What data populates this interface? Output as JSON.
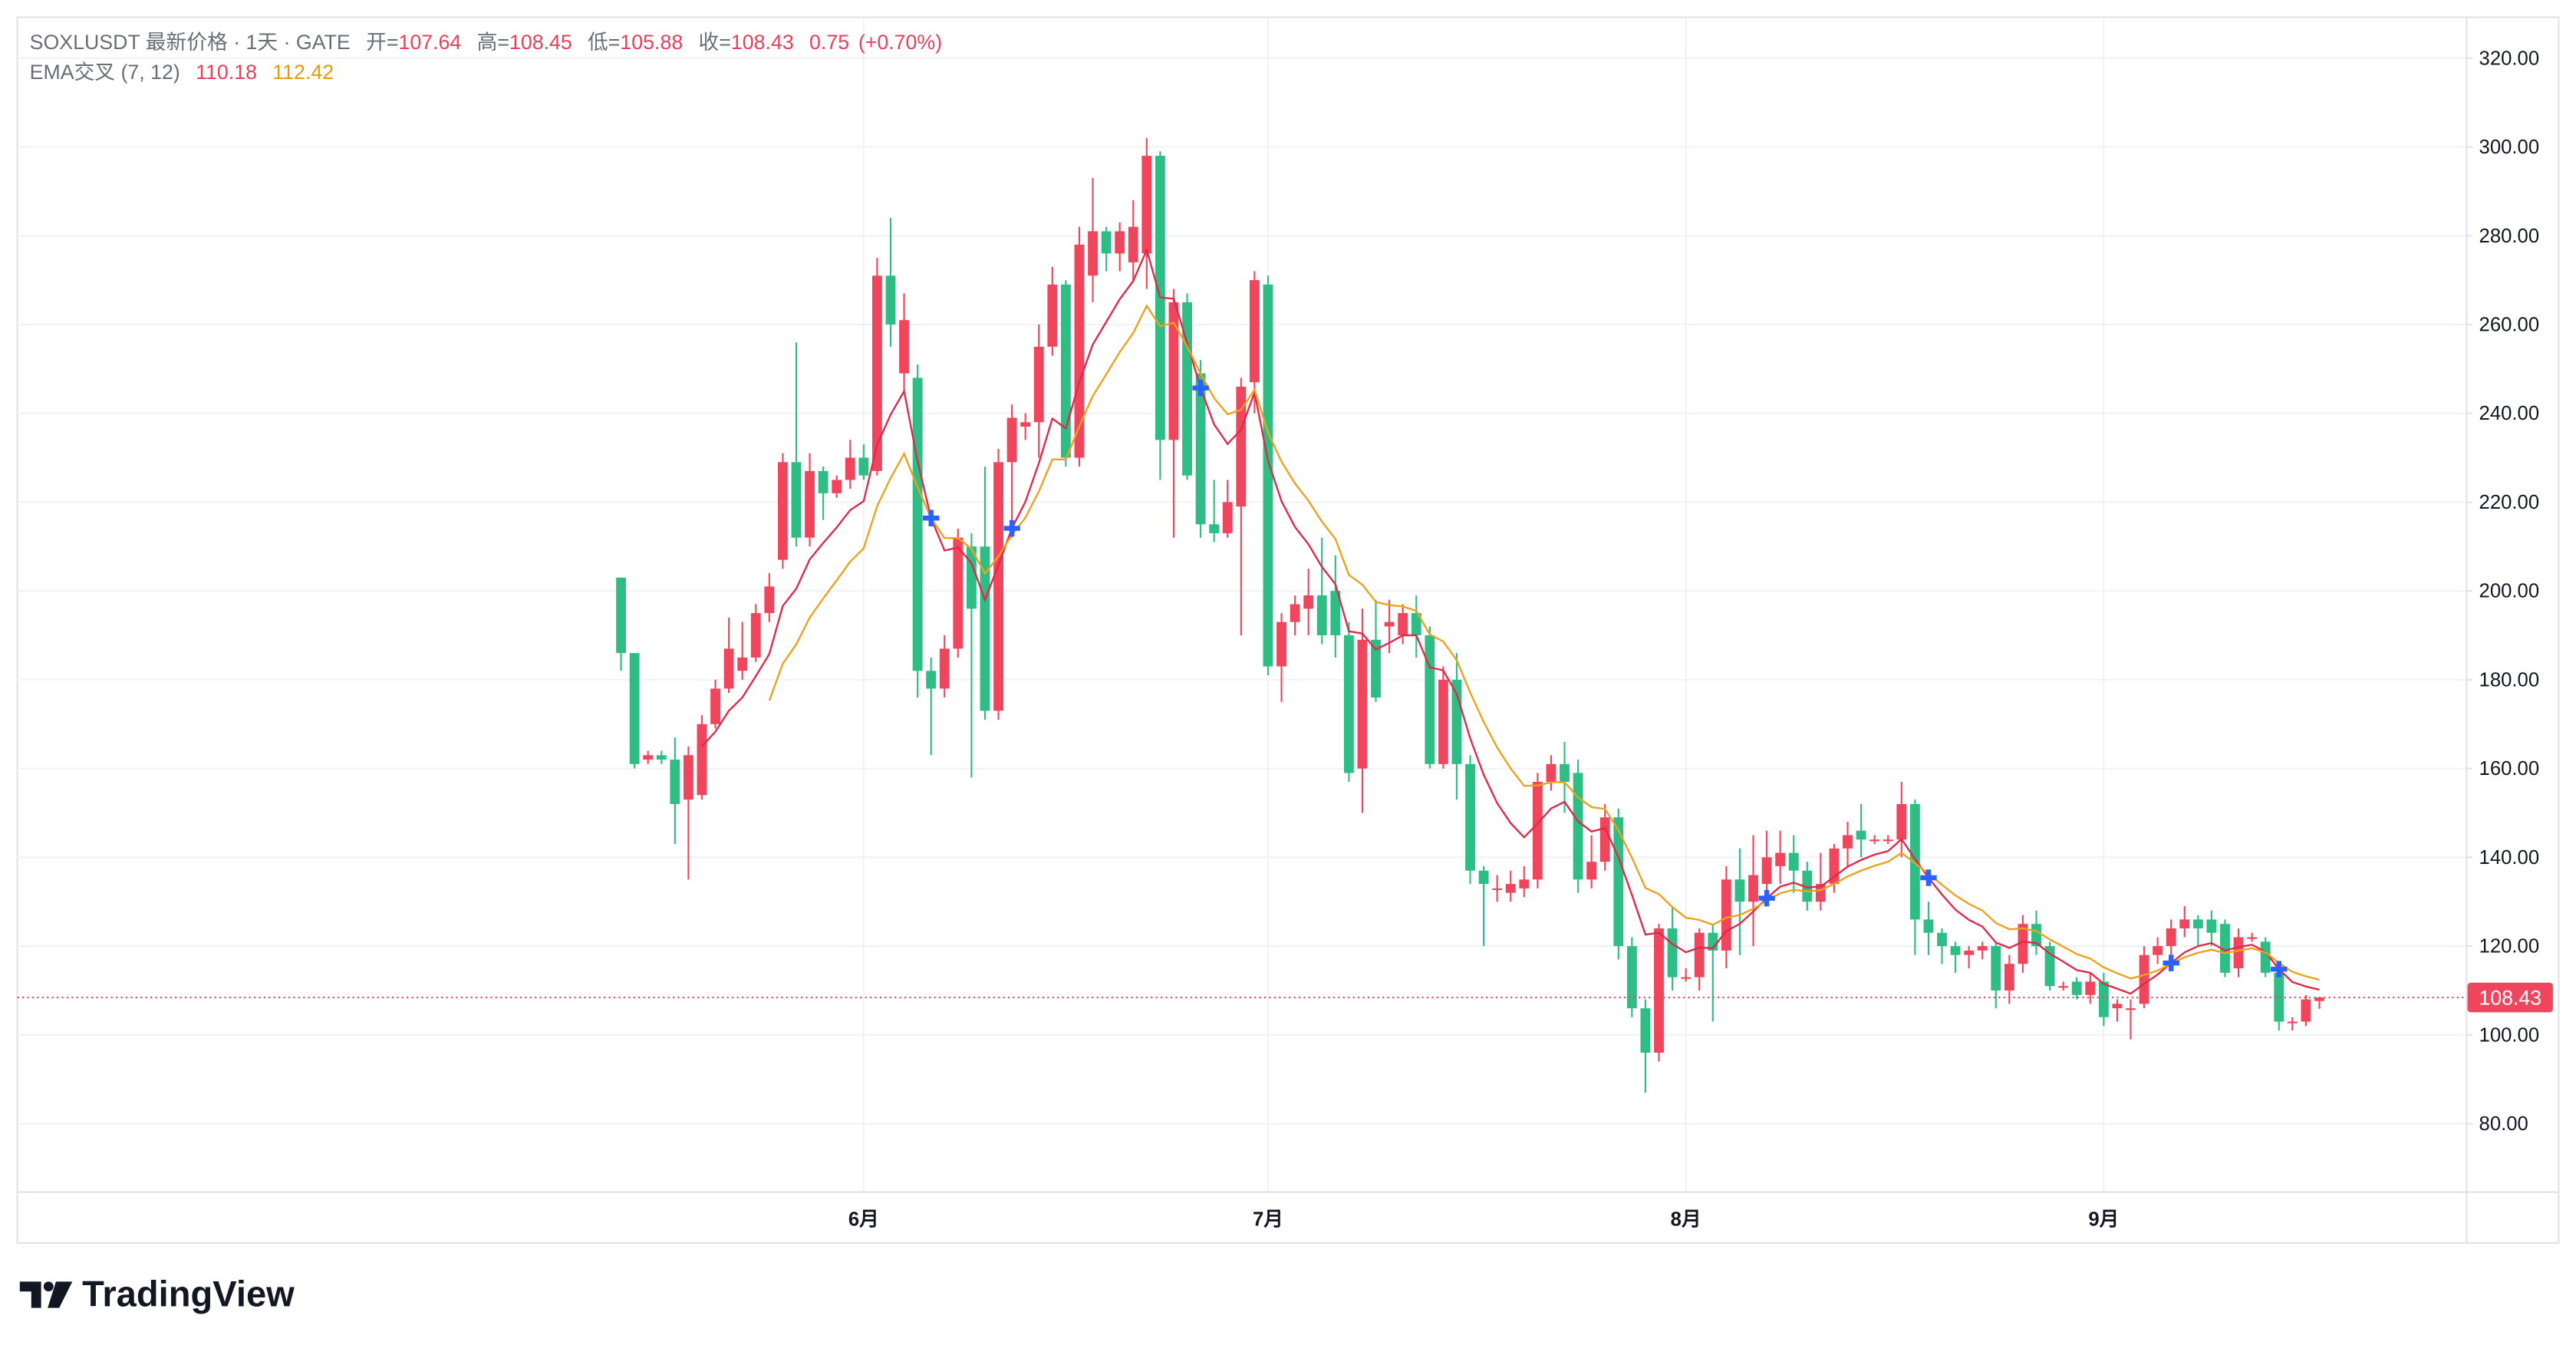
{
  "chart_data": {
    "type": "candlestick",
    "title": "SOXLUSDT 最新价格 · 1天 · GATE",
    "ohlc_labels": {
      "open": "开=",
      "high": "高=",
      "low": "低=",
      "close": "收="
    },
    "change": 0.75,
    "change_pct": {
      "value": 0.7,
      "label": "(+0.70%)"
    },
    "categories": [
      null,
      null,
      null,
      null,
      null,
      null,
      null,
      null,
      null,
      null,
      null,
      null,
      null,
      null,
      null,
      null,
      null,
      null,
      "6月",
      null,
      null,
      null,
      null,
      null,
      null,
      null,
      null,
      null,
      null,
      null,
      null,
      null,
      null,
      null,
      null,
      null,
      null,
      null,
      null,
      null,
      null,
      null,
      null,
      null,
      null,
      null,
      null,
      null,
      "7月",
      null,
      null,
      null,
      null,
      null,
      null,
      null,
      null,
      null,
      null,
      null,
      null,
      null,
      null,
      null,
      null,
      null,
      null,
      null,
      null,
      null,
      null,
      null,
      null,
      null,
      null,
      null,
      null,
      null,
      null,
      "8月",
      null,
      null,
      null,
      null,
      null,
      null,
      null,
      null,
      null,
      null,
      null,
      null,
      null,
      null,
      null,
      null,
      null,
      null,
      null,
      null,
      null,
      null,
      null,
      null,
      null,
      null,
      null,
      null,
      null,
      null,
      "9月",
      null,
      null,
      null,
      null,
      null,
      null,
      null,
      null,
      null,
      null,
      null,
      null,
      null,
      null,
      null,
      null
    ],
    "open": [
      203,
      186,
      162,
      163,
      162,
      153,
      154,
      170,
      178,
      182,
      185,
      195,
      207,
      229,
      212,
      227,
      222,
      225,
      230,
      227,
      271,
      249,
      248,
      182,
      178,
      187,
      210,
      210,
      173,
      229,
      237,
      238,
      255,
      269,
      230,
      271,
      281,
      276,
      274,
      276,
      298,
      234,
      265,
      249,
      215,
      213,
      219,
      247,
      269,
      183,
      193,
      196,
      199,
      200,
      190,
      160,
      189,
      192,
      190,
      195,
      190,
      161,
      180,
      161,
      137,
      133,
      132,
      133,
      135,
      157,
      161,
      159,
      135,
      139,
      149,
      120,
      106,
      96,
      124,
      113,
      113,
      123,
      119,
      135,
      130,
      134,
      138,
      141,
      137,
      130,
      134,
      142,
      146,
      144,
      144,
      144,
      152,
      126,
      123,
      120,
      118,
      119,
      120,
      110,
      116,
      125,
      120,
      111,
      112,
      109,
      112,
      106,
      106,
      107,
      118,
      120,
      124,
      126,
      126,
      125,
      115,
      122,
      121,
      114,
      103,
      103,
      107.64
    ],
    "high": [
      203,
      186,
      164,
      164,
      167,
      165,
      172,
      180,
      194,
      193,
      197,
      204,
      231,
      256,
      231,
      228,
      226,
      234,
      233,
      275,
      284,
      267,
      251,
      185,
      190,
      214,
      213,
      228,
      232,
      242,
      240,
      260,
      273,
      270,
      282,
      293,
      282,
      283,
      288,
      302,
      299,
      268,
      267,
      252,
      225,
      225,
      248,
      272,
      271,
      195,
      199,
      205,
      212,
      208,
      193,
      196,
      198,
      198,
      197,
      199,
      192,
      183,
      186,
      163,
      138,
      136,
      137,
      138,
      159,
      163,
      166,
      162,
      145,
      152,
      151,
      122,
      108,
      125,
      129,
      115,
      124,
      125,
      138,
      142,
      145,
      146,
      146,
      145,
      139,
      141,
      143,
      148,
      152,
      145,
      145,
      157,
      153,
      130,
      124,
      121,
      120,
      121,
      121,
      118,
      127,
      128,
      121,
      112,
      113,
      114,
      114,
      108,
      108,
      120,
      122,
      126,
      129,
      127,
      128,
      126,
      124,
      123,
      122,
      116,
      104,
      109,
      108.45
    ],
    "low": [
      182,
      160,
      161,
      161,
      143,
      135,
      153,
      169,
      177,
      180,
      184,
      193,
      205,
      210,
      210,
      216,
      221,
      223,
      225,
      226,
      255,
      245,
      176,
      163,
      176,
      185,
      158,
      171,
      171,
      212,
      234,
      230,
      253,
      228,
      228,
      265,
      272,
      272,
      270,
      268,
      225,
      212,
      225,
      212,
      211,
      212,
      190,
      240,
      181,
      175,
      190,
      190,
      188,
      185,
      157,
      150,
      175,
      186,
      188,
      185,
      160,
      160,
      153,
      134,
      120,
      130,
      130,
      131,
      133,
      155,
      150,
      132,
      133,
      137,
      117,
      104,
      87,
      94,
      110,
      112,
      110,
      103,
      115,
      118,
      120,
      130,
      134,
      132,
      128,
      128,
      132,
      138,
      140,
      143,
      143,
      140,
      118,
      118,
      116,
      114,
      115,
      117,
      106,
      107,
      114,
      118,
      110,
      110,
      108,
      107,
      102,
      103,
      99,
      106,
      116,
      118,
      122,
      120,
      120,
      113,
      113,
      121,
      113,
      101,
      101,
      102,
      105.88
    ],
    "close": [
      186,
      161,
      163,
      162,
      152,
      163,
      170,
      178,
      187,
      185,
      195,
      201,
      229,
      212,
      227,
      222,
      225,
      230,
      226,
      271,
      260,
      261,
      182,
      178,
      187,
      212,
      196,
      173,
      229,
      239,
      238,
      255,
      269,
      230,
      278,
      281,
      276,
      281,
      282,
      298,
      234,
      265,
      226,
      215,
      213,
      220,
      246,
      270,
      183,
      193,
      197,
      199,
      190,
      190,
      159,
      189,
      176,
      193,
      195,
      190,
      161,
      180,
      161,
      137,
      134,
      133,
      134,
      135,
      157,
      161,
      157,
      135,
      139,
      149,
      120,
      106,
      96,
      124,
      113,
      113,
      123,
      119,
      135,
      130,
      136,
      140,
      141,
      137,
      130,
      134,
      142,
      145,
      144,
      144,
      144,
      152,
      126,
      123,
      120,
      118,
      119,
      120,
      110,
      116,
      125,
      120,
      111,
      111,
      109,
      112,
      104,
      107,
      106,
      118,
      120,
      124,
      126,
      124,
      123,
      114,
      122,
      122,
      114,
      103,
      103,
      108,
      108.43
    ],
    "up_color": "#f0465d",
    "down_color": "#2ebd85",
    "indicator": {
      "name": "EMA交叉 (7, 12)",
      "lines": [
        {
          "color": "#e0294a",
          "values": [
            null,
            null,
            null,
            null,
            null,
            null,
            165,
            168.3,
            173,
            176,
            180.8,
            185.8,
            196.6,
            200.5,
            207.1,
            210.8,
            214.3,
            218.2,
            220.2,
            232.9,
            239.7,
            245,
            229.2,
            216.4,
            209.1,
            209.8,
            206.3,
            198,
            205.8,
            214.1,
            220.1,
            228.8,
            238.8,
            236.6,
            247,
            255.5,
            260.6,
            265.7,
            269.8,
            276.8,
            266.1,
            265.8,
            255.9,
            245.7,
            237.5,
            233.1,
            236.3,
            244.7,
            229.3,
            220.2,
            214.4,
            210.5,
            205.4,
            201.5,
            190.9,
            190.4,
            186.8,
            188.3,
            190,
            190,
            182.8,
            182.1,
            176.8,
            166.8,
            158.6,
            152.2,
            147.7,
            144.5,
            147.6,
            151,
            152.5,
            148.1,
            145.8,
            146.6,
            140,
            131.5,
            122.6,
            123,
            120.5,
            118.6,
            119.7,
            119.5,
            123.4,
            125,
            127.8,
            130.8,
            133.4,
            134.3,
            133.2,
            133.4,
            135.6,
            137.9,
            139.4,
            140.6,
            141.4,
            144.1,
            139.6,
            135.4,
            131.6,
            128.2,
            125.9,
            124.4,
            120.8,
            119.6,
            121,
            120.7,
            118.3,
            116.5,
            114.6,
            114,
            111.5,
            110.4,
            109.3,
            111.5,
            113.6,
            116.2,
            118.6,
            120,
            120.7,
            119,
            119.8,
            120.3,
            118.7,
            114.8,
            111.9,
            110.9,
            110.18
          ]
        },
        {
          "color": "#eea11a",
          "values": [
            null,
            null,
            null,
            null,
            null,
            null,
            null,
            null,
            null,
            null,
            null,
            175.3,
            183.6,
            188,
            194,
            198.3,
            202.4,
            206.6,
            209.6,
            219.1,
            225.4,
            230.9,
            223.4,
            216.4,
            211.9,
            211.9,
            209.5,
            203.9,
            207.8,
            212.6,
            216.5,
            222.4,
            229.6,
            229.6,
            237.1,
            243.9,
            248.8,
            253.8,
            258.1,
            264.2,
            259.6,
            260.4,
            255.1,
            248.9,
            243.4,
            239.8,
            240.8,
            245.3,
            235.7,
            229.1,
            224.2,
            220.3,
            215.6,
            211.7,
            203.6,
            201.4,
            197.5,
            196.8,
            196.5,
            195.5,
            190.2,
            188.6,
            184.4,
            177.1,
            170.5,
            164.7,
            160,
            156.1,
            156.2,
            156.9,
            156.9,
            153.5,
            151.3,
            150.9,
            146.1,
            139.9,
            133.1,
            131.7,
            128.8,
            126.4,
            125.9,
            124.8,
            126.4,
            127,
            128.4,
            130.2,
            131.9,
            132.7,
            132.3,
            132.6,
            134,
            135.7,
            137,
            138.1,
            139,
            141,
            138.7,
            136.3,
            133.8,
            131.4,
            129.5,
            128,
            125.2,
            123.8,
            124,
            123.4,
            121.5,
            119.9,
            118.2,
            117.2,
            115.2,
            113.9,
            112.7,
            113.5,
            114.5,
            116,
            117.5,
            118.5,
            119.2,
            118.4,
            119,
            119.5,
            118.6,
            116.2,
            114.2,
            113.2,
            112.42
          ]
        }
      ],
      "cross_color": "#2962ff"
    },
    "ylim": [
      64.8,
      329.2
    ],
    "yticks": [
      {
        "value": 80,
        "label": "80.00"
      },
      {
        "value": 100,
        "label": "100.00"
      },
      {
        "value": 120,
        "label": "120.00"
      },
      {
        "value": 140,
        "label": "140.00"
      },
      {
        "value": 160,
        "label": "160.00"
      },
      {
        "value": 180,
        "label": "180.00"
      },
      {
        "value": 200,
        "label": "200.00"
      },
      {
        "value": 220,
        "label": "220.00"
      },
      {
        "value": 240,
        "label": "240.00"
      },
      {
        "value": 260,
        "label": "260.00"
      },
      {
        "value": 280,
        "label": "280.00"
      },
      {
        "value": 300,
        "label": "300.00"
      },
      {
        "value": 320,
        "label": "320.00"
      }
    ],
    "grid": true,
    "branding": "TradingView"
  }
}
